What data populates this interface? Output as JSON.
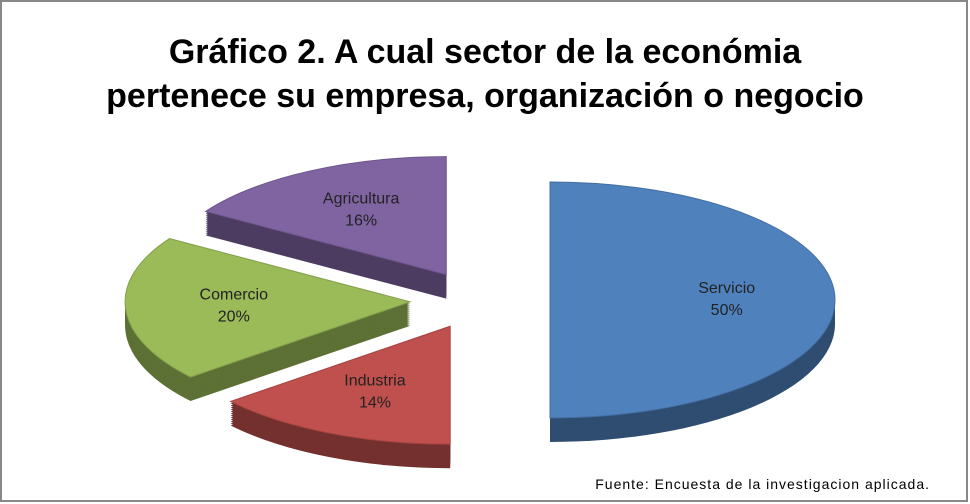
{
  "chart_data": {
    "type": "pie",
    "title": "Gráfico 2. A cual sector de la económia pertenece su empresa, organización o negocio",
    "categories": [
      "Servicio",
      "Industria",
      "Comercio",
      "Agricultura"
    ],
    "values": [
      50,
      14,
      20,
      16
    ],
    "value_labels": [
      "50%",
      "14%",
      "20%",
      "16%"
    ],
    "colors": [
      "#4f81bd",
      "#c0504d",
      "#9bbb59",
      "#8064a2"
    ],
    "source": "Fuente: Encuesta de la investigacion aplicada."
  }
}
